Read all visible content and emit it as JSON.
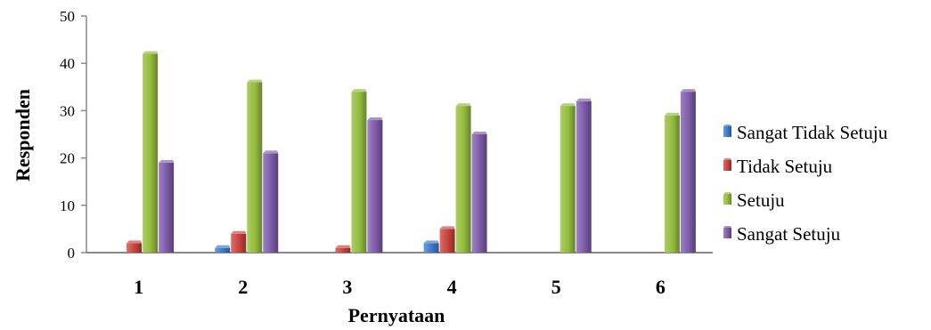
{
  "chart_data": {
    "type": "bar",
    "xlabel": "Pernyataan",
    "ylabel": "Responden",
    "ylim": [
      0,
      50
    ],
    "yticks": [
      0,
      10,
      20,
      30,
      40,
      50
    ],
    "categories": [
      "1",
      "2",
      "3",
      "4",
      "5",
      "6"
    ],
    "grid": false,
    "legend_position": "right",
    "series": [
      {
        "name": "Sangat Tidak Setuju",
        "color": "#3a78c8",
        "values": [
          0,
          1,
          0,
          2,
          0,
          0
        ]
      },
      {
        "name": "Tidak Setuju",
        "color": "#c8403c",
        "values": [
          2,
          4,
          1,
          5,
          0,
          0
        ]
      },
      {
        "name": "Setuju",
        "color": "#92bb3a",
        "values": [
          42,
          36,
          34,
          31,
          31,
          29
        ]
      },
      {
        "name": "Sangat Setuju",
        "color": "#7c5aa8",
        "values": [
          19,
          21,
          28,
          25,
          32,
          34
        ]
      }
    ]
  }
}
